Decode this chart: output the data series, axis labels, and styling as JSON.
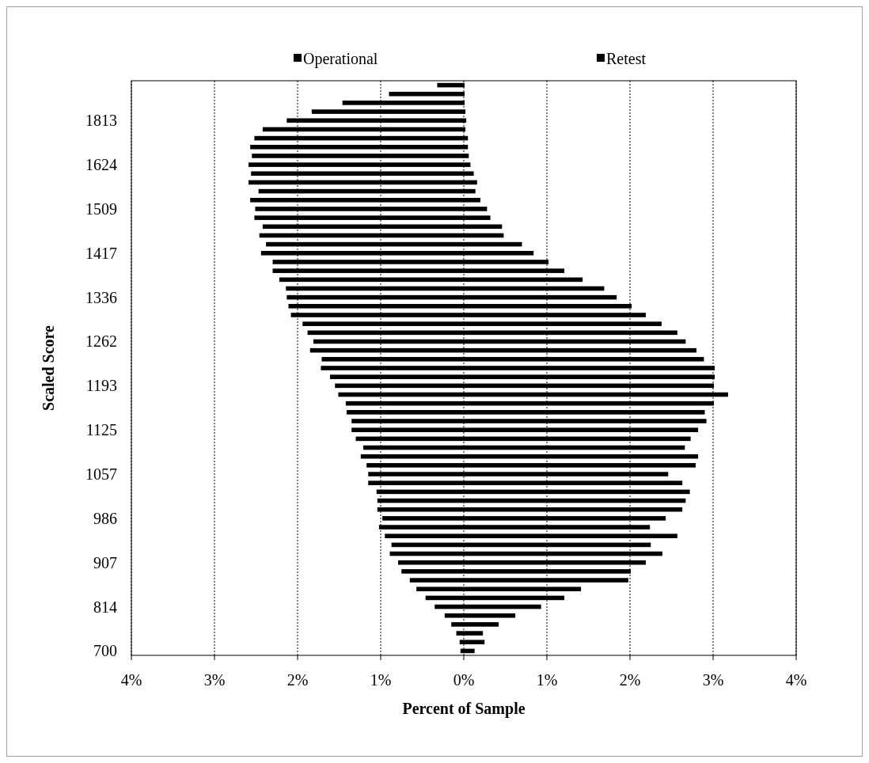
{
  "chart_data": {
    "type": "bar",
    "orientation": "horizontal",
    "xlabel": "Percent of Sample",
    "ylabel": "Scaled Score",
    "categories": [
      null,
      null,
      null,
      null,
      "1813",
      null,
      null,
      null,
      null,
      "1624",
      null,
      null,
      null,
      null,
      "1509",
      null,
      null,
      null,
      null,
      "1417",
      null,
      null,
      null,
      null,
      "1336",
      null,
      null,
      null,
      null,
      "1262",
      null,
      null,
      null,
      null,
      "1193",
      null,
      null,
      null,
      null,
      "1125",
      null,
      null,
      null,
      null,
      "1057",
      null,
      null,
      null,
      null,
      "986",
      null,
      null,
      null,
      null,
      "907",
      null,
      null,
      null,
      null,
      "814",
      null,
      null,
      null,
      null,
      "700"
    ],
    "series": [
      {
        "name": "Operational",
        "color": "#000000",
        "values": [
          -0.32,
          -0.9,
          -1.46,
          -1.83,
          -2.13,
          -2.42,
          -2.52,
          -2.57,
          -2.55,
          -2.59,
          -2.56,
          -2.59,
          -2.47,
          -2.57,
          -2.51,
          -2.52,
          -2.42,
          -2.46,
          -2.38,
          -2.44,
          -2.3,
          -2.3,
          -2.22,
          -2.14,
          -2.13,
          -2.11,
          -2.08,
          -1.94,
          -1.88,
          -1.81,
          -1.85,
          -1.71,
          -1.72,
          -1.61,
          -1.55,
          -1.51,
          -1.42,
          -1.41,
          -1.35,
          -1.35,
          -1.3,
          -1.21,
          -1.24,
          -1.17,
          -1.15,
          -1.15,
          -1.05,
          -1.04,
          -1.04,
          -0.98,
          -1.02,
          -0.95,
          -0.87,
          -0.89,
          -0.79,
          -0.75,
          -0.65,
          -0.57,
          -0.46,
          -0.35,
          -0.23,
          -0.15,
          -0.09,
          -0.05,
          -0.04
        ]
      },
      {
        "name": "Retest",
        "color": "#000000",
        "values": [
          0.01,
          0.01,
          0.01,
          0.02,
          0.03,
          0.02,
          0.05,
          0.05,
          0.06,
          0.08,
          0.12,
          0.16,
          0.14,
          0.2,
          0.28,
          0.32,
          0.46,
          0.48,
          0.7,
          0.84,
          1.02,
          1.21,
          1.43,
          1.69,
          1.84,
          2.02,
          2.19,
          2.38,
          2.57,
          2.67,
          2.8,
          2.89,
          3.02,
          3.02,
          3.01,
          3.18,
          3.01,
          2.9,
          2.92,
          2.82,
          2.73,
          2.66,
          2.82,
          2.79,
          2.46,
          2.63,
          2.72,
          2.67,
          2.63,
          2.43,
          2.24,
          2.57,
          2.25,
          2.39,
          2.19,
          2.01,
          1.98,
          1.41,
          1.21,
          0.93,
          0.62,
          0.42,
          0.23,
          0.25,
          0.13
        ]
      }
    ],
    "xlim": [
      -4,
      4
    ],
    "xticks": [
      {
        "value": -4,
        "label": "4%"
      },
      {
        "value": -3,
        "label": "3%"
      },
      {
        "value": -2,
        "label": "2%"
      },
      {
        "value": -1,
        "label": "1%"
      },
      {
        "value": 0,
        "label": "0%"
      },
      {
        "value": 1,
        "label": "1%"
      },
      {
        "value": 2,
        "label": "2%"
      },
      {
        "value": 3,
        "label": "3%"
      },
      {
        "value": 4,
        "label": "4%"
      }
    ],
    "stacked": true,
    "grid": "x",
    "legend": "top"
  }
}
